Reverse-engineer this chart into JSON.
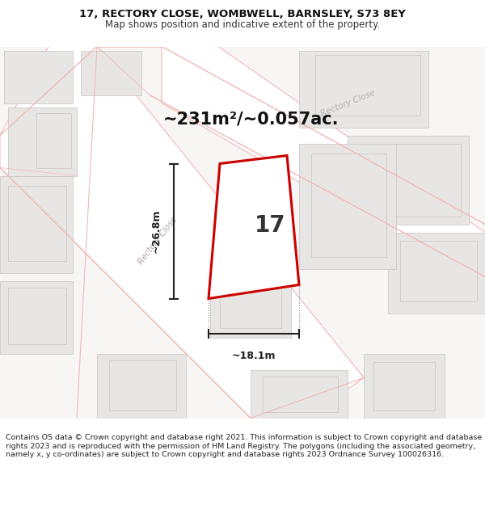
{
  "title": "17, RECTORY CLOSE, WOMBWELL, BARNSLEY, S73 8EY",
  "subtitle": "Map shows position and indicative extent of the property.",
  "area_text": "~231m²/~0.057ac.",
  "dim_vertical": "~26.8m",
  "dim_horizontal": "~18.1m",
  "number_label": "17",
  "footer_text": "Contains OS data © Crown copyright and database right 2021. This information is subject to Crown copyright and database rights 2023 and is reproduced with the permission of HM Land Registry. The polygons (including the associated geometry, namely x, y co-ordinates) are subject to Crown copyright and database rights 2023 Ordnance Survey 100026316.",
  "bg_color": "#ffffff",
  "map_bg_color": "#f7f6f4",
  "plot_fill": "#ffffff",
  "plot_edge": "#cc0000",
  "street_color": "#f0b8b8",
  "road_fill": "#ffffff",
  "building_fill": "#e8e6e4",
  "building_edge": "#c8c4c0",
  "dim_color": "#222222",
  "label_color": "#555555"
}
